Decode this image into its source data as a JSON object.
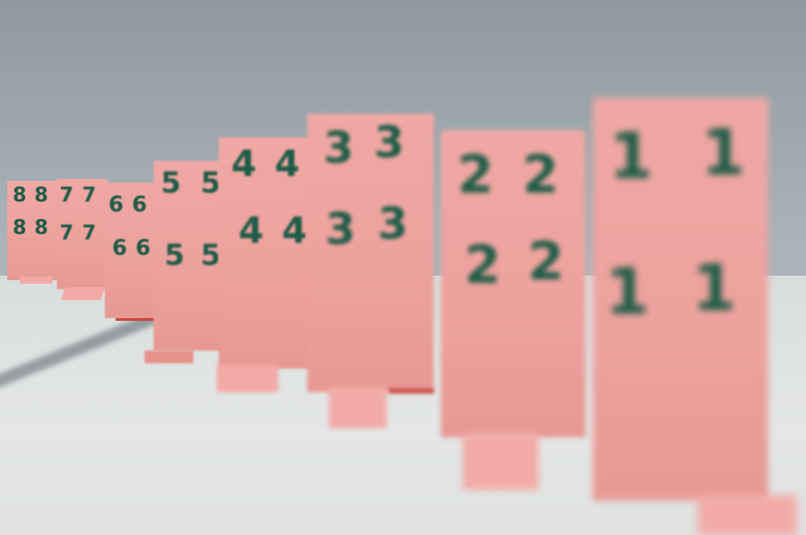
{
  "scene": {
    "description_colors": {
      "wall": "#a9b3b8",
      "table": "#e0e3e2",
      "card": "#eda19d",
      "digit": "#1f5c47"
    }
  },
  "cards": [
    {
      "top_left": "8",
      "top_right": "8",
      "bottom_left": "8",
      "bottom_right": "8"
    },
    {
      "top_left": "7",
      "top_right": "7",
      "bottom_left": "7",
      "bottom_right": "7"
    },
    {
      "top_left": "6",
      "top_right": "6",
      "bottom_left": "6",
      "bottom_right": "6"
    },
    {
      "top_left": "5",
      "top_right": "5",
      "bottom_left": "5",
      "bottom_right": "5"
    },
    {
      "top_left": "4",
      "top_right": "4",
      "bottom_left": "4",
      "bottom_right": "4"
    },
    {
      "top_left": "3",
      "top_right": "3",
      "bottom_left": "3",
      "bottom_right": "3"
    },
    {
      "top_left": "2",
      "top_right": "2",
      "bottom_left": "2",
      "bottom_right": "2"
    },
    {
      "top_left": "1",
      "top_right": "1",
      "bottom_left": "1",
      "bottom_right": "1"
    }
  ]
}
